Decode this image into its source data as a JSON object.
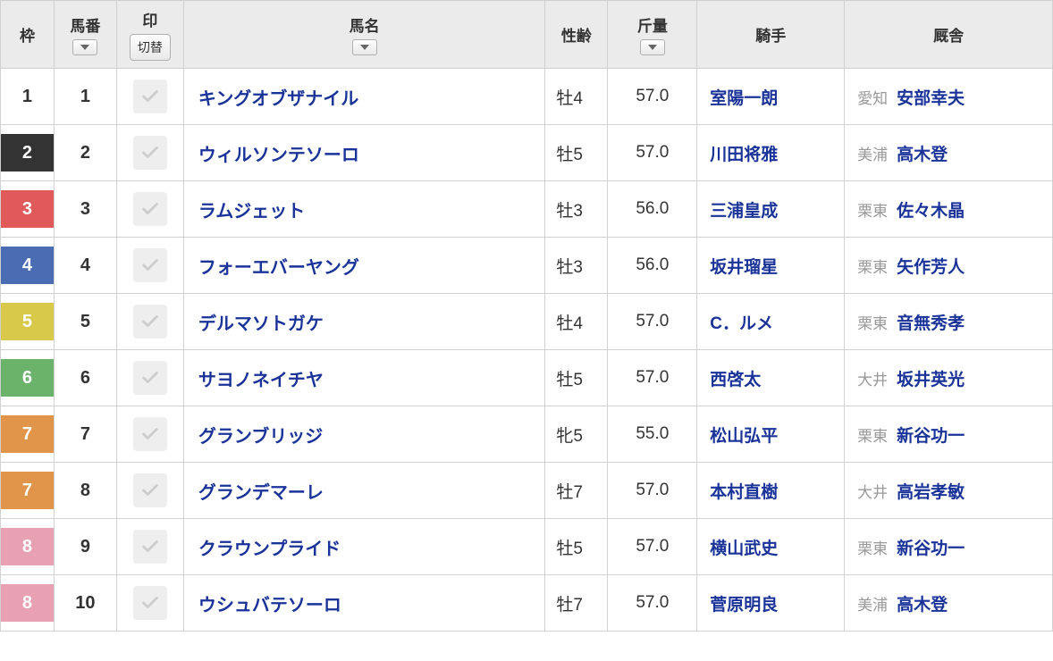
{
  "headers": {
    "waku": "枠",
    "umaban": "馬番",
    "mark": "印",
    "mark_switch": "切替",
    "name": "馬名",
    "sexage": "性齢",
    "weight": "斤量",
    "jockey": "騎手",
    "stable": "厩舎"
  },
  "waku_colors": {
    "1": {
      "bg": "#ffffff",
      "fg": "#333333",
      "border": "#d0d0d0"
    },
    "2": {
      "bg": "#333333",
      "fg": "#ffffff",
      "border": "#333333"
    },
    "3": {
      "bg": "#e05a5a",
      "fg": "#ffffff",
      "border": "#e05a5a"
    },
    "4": {
      "bg": "#4a6cb3",
      "fg": "#ffffff",
      "border": "#4a6cb3"
    },
    "5": {
      "bg": "#d9c94a",
      "fg": "#ffffff",
      "border": "#d9c94a"
    },
    "6": {
      "bg": "#6bb36b",
      "fg": "#ffffff",
      "border": "#6bb36b"
    },
    "7": {
      "bg": "#e0954a",
      "fg": "#ffffff",
      "border": "#e0954a"
    },
    "8": {
      "bg": "#e8a0b3",
      "fg": "#ffffff",
      "border": "#e8a0b3"
    }
  },
  "rows": [
    {
      "waku": "1",
      "umaban": "1",
      "name": "キングオブザナイル",
      "sexage": "牡4",
      "weight": "57.0",
      "jockey": "室陽一朗",
      "stable_loc": "愛知",
      "trainer": "安部幸夫"
    },
    {
      "waku": "2",
      "umaban": "2",
      "name": "ウィルソンテソーロ",
      "sexage": "牡5",
      "weight": "57.0",
      "jockey": "川田将雅",
      "stable_loc": "美浦",
      "trainer": "高木登"
    },
    {
      "waku": "3",
      "umaban": "3",
      "name": "ラムジェット",
      "sexage": "牡3",
      "weight": "56.0",
      "jockey": "三浦皇成",
      "stable_loc": "栗東",
      "trainer": "佐々木晶"
    },
    {
      "waku": "4",
      "umaban": "4",
      "name": "フォーエバーヤング",
      "sexage": "牡3",
      "weight": "56.0",
      "jockey": "坂井瑠星",
      "stable_loc": "栗東",
      "trainer": "矢作芳人"
    },
    {
      "waku": "5",
      "umaban": "5",
      "name": "デルマソトガケ",
      "sexage": "牡4",
      "weight": "57.0",
      "jockey": "C．ルメ",
      "stable_loc": "栗東",
      "trainer": "音無秀孝"
    },
    {
      "waku": "6",
      "umaban": "6",
      "name": "サヨノネイチヤ",
      "sexage": "牡5",
      "weight": "57.0",
      "jockey": "西啓太",
      "stable_loc": "大井",
      "trainer": "坂井英光"
    },
    {
      "waku": "7",
      "umaban": "7",
      "name": "グランブリッジ",
      "sexage": "牝5",
      "weight": "55.0",
      "jockey": "松山弘平",
      "stable_loc": "栗東",
      "trainer": "新谷功一"
    },
    {
      "waku": "7",
      "umaban": "8",
      "name": "グランデマーレ",
      "sexage": "牡7",
      "weight": "57.0",
      "jockey": "本村直樹",
      "stable_loc": "大井",
      "trainer": "高岩孝敏"
    },
    {
      "waku": "8",
      "umaban": "9",
      "name": "クラウンプライド",
      "sexage": "牡5",
      "weight": "57.0",
      "jockey": "横山武史",
      "stable_loc": "栗東",
      "trainer": "新谷功一"
    },
    {
      "waku": "8",
      "umaban": "10",
      "name": "ウシュバテソーロ",
      "sexage": "牡7",
      "weight": "57.0",
      "jockey": "菅原明良",
      "stable_loc": "美浦",
      "trainer": "高木登"
    }
  ]
}
